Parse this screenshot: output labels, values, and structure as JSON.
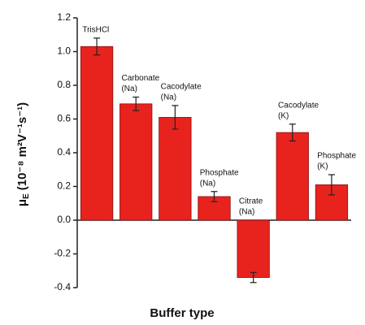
{
  "chart_data": {
    "type": "bar",
    "x_label": "Buffer type",
    "y_label": {
      "symbol": "μ",
      "subscript": "E",
      "unit": "(10⁻⁸ m²V⁻¹s⁻¹)"
    },
    "categories": [
      [
        "TrisHCl"
      ],
      [
        "Carbonate",
        "(Na)"
      ],
      [
        "Cacodylate",
        "(Na)"
      ],
      [
        "Phosphate",
        "(Na)"
      ],
      [
        "Citrate",
        "(Na)"
      ],
      [
        "Cacodylate",
        "(K)"
      ],
      [
        "Phosphate",
        "(K)"
      ]
    ],
    "values": [
      1.03,
      0.69,
      0.61,
      0.14,
      -0.34,
      0.52,
      0.21
    ],
    "errors": [
      0.05,
      0.04,
      0.07,
      0.03,
      0.03,
      0.05,
      0.06
    ],
    "color": "#e8231e",
    "ylim": [
      -0.4,
      1.2
    ],
    "yticks": [
      1.2,
      {
        "value": 1.0,
        "label": "1.0"
      },
      0.8,
      0.6,
      0.4,
      0.2,
      {
        "value": 0,
        "label": "0.0"
      },
      -0.2,
      -0.4
    ],
    "grid": false
  }
}
